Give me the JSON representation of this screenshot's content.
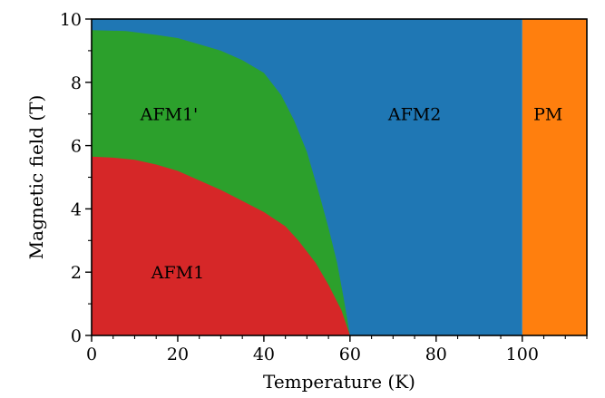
{
  "chart_data": {
    "type": "area",
    "title": "",
    "xlabel": "Temperature (K)",
    "ylabel": "Magnetic field (T)",
    "xlim": [
      0,
      115
    ],
    "ylim": [
      0,
      10
    ],
    "xticks": [
      0,
      20,
      40,
      60,
      80,
      100
    ],
    "yticks": [
      0,
      2,
      4,
      6,
      8,
      10
    ],
    "xminor_step": 5,
    "yminor_step": 1,
    "grid": false,
    "regions": [
      {
        "id": "pm",
        "label": "PM",
        "color": "#ff7f0e",
        "label_at": [
          106,
          7
        ],
        "boundary": [
          [
            100,
            0
          ],
          [
            115,
            0
          ],
          [
            115,
            10
          ],
          [
            100,
            10
          ]
        ]
      },
      {
        "id": "afm2",
        "label": "AFM2",
        "color": "#1f77b4",
        "label_at": [
          75,
          7
        ],
        "boundary": [
          [
            0,
            0
          ],
          [
            100,
            0
          ],
          [
            100,
            10
          ],
          [
            0,
            10
          ]
        ]
      },
      {
        "id": "afm1-prime",
        "label": "AFM1'",
        "color": "#2ca02c",
        "label_at": [
          18,
          7
        ],
        "boundary": [
          [
            0,
            0
          ],
          [
            0,
            9.65
          ],
          [
            8,
            9.62
          ],
          [
            15,
            9.5
          ],
          [
            20,
            9.4
          ],
          [
            25,
            9.2
          ],
          [
            30,
            9.0
          ],
          [
            35,
            8.7
          ],
          [
            40,
            8.3
          ],
          [
            44,
            7.6
          ],
          [
            47,
            6.8
          ],
          [
            50,
            5.8
          ],
          [
            53,
            4.4
          ],
          [
            55,
            3.4
          ],
          [
            57,
            2.3
          ],
          [
            58.5,
            1.2
          ],
          [
            60,
            0
          ]
        ]
      },
      {
        "id": "afm1",
        "label": "AFM1",
        "color": "#d62728",
        "label_at": [
          20,
          2
        ],
        "boundary": [
          [
            0,
            0
          ],
          [
            0,
            5.65
          ],
          [
            5,
            5.62
          ],
          [
            10,
            5.55
          ],
          [
            15,
            5.4
          ],
          [
            20,
            5.2
          ],
          [
            25,
            4.9
          ],
          [
            30,
            4.6
          ],
          [
            35,
            4.25
          ],
          [
            40,
            3.9
          ],
          [
            45,
            3.45
          ],
          [
            48,
            3.0
          ],
          [
            52,
            2.3
          ],
          [
            55,
            1.6
          ],
          [
            58,
            0.8
          ],
          [
            60,
            0
          ]
        ]
      }
    ]
  }
}
